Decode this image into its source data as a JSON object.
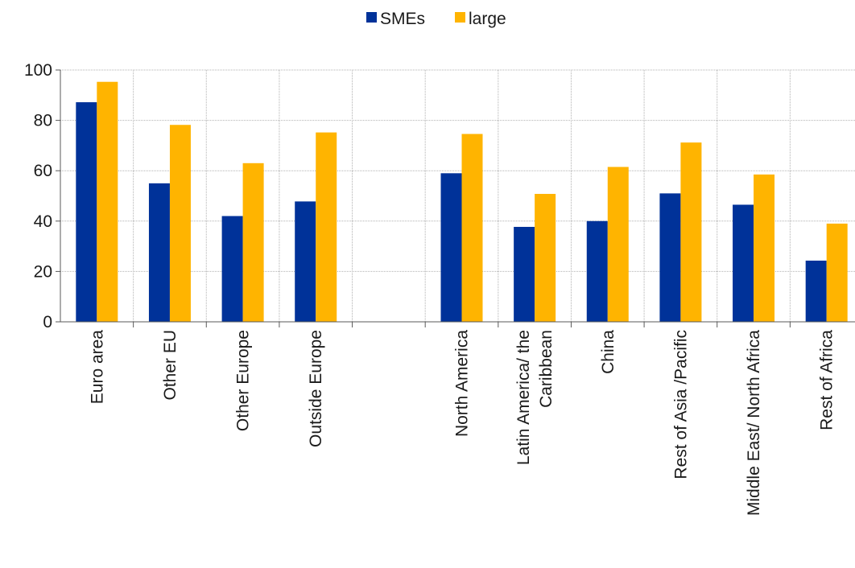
{
  "chart_data": {
    "type": "bar",
    "categories": [
      "Euro area",
      "Other EU",
      "Other Europe",
      "Outside Europe",
      "",
      "North America",
      "Latin America/ the Caribbean",
      "China",
      "Rest of Asia /Pacific",
      "Middle East/ North Africa",
      "Rest of Africa"
    ],
    "category_lines": [
      [
        "Euro area"
      ],
      [
        "Other EU"
      ],
      [
        "Other Europe"
      ],
      [
        "Outside Europe"
      ],
      [],
      [
        "North America"
      ],
      [
        "Latin America/ the",
        "Caribbean"
      ],
      [
        "China"
      ],
      [
        "Rest of Asia /Pacific"
      ],
      [
        "Middle East/ North Africa"
      ],
      [
        "Rest of Africa"
      ]
    ],
    "series": [
      {
        "name": "SMEs",
        "color": "#003299",
        "values": [
          87.2,
          55.0,
          42.0,
          47.8,
          null,
          59.0,
          37.7,
          40.0,
          51.0,
          46.5,
          24.3
        ]
      },
      {
        "name": "large",
        "color": "#FFB400",
        "values": [
          95.3,
          78.2,
          63.0,
          75.2,
          null,
          74.6,
          50.8,
          61.5,
          71.2,
          58.5,
          39.0
        ]
      }
    ],
    "ylim": [
      0,
      100
    ],
    "yticks": [
      0,
      20,
      40,
      60,
      80,
      100
    ],
    "grid": true,
    "legend_position": "top-center",
    "title": "",
    "xlabel": "",
    "ylabel": ""
  }
}
